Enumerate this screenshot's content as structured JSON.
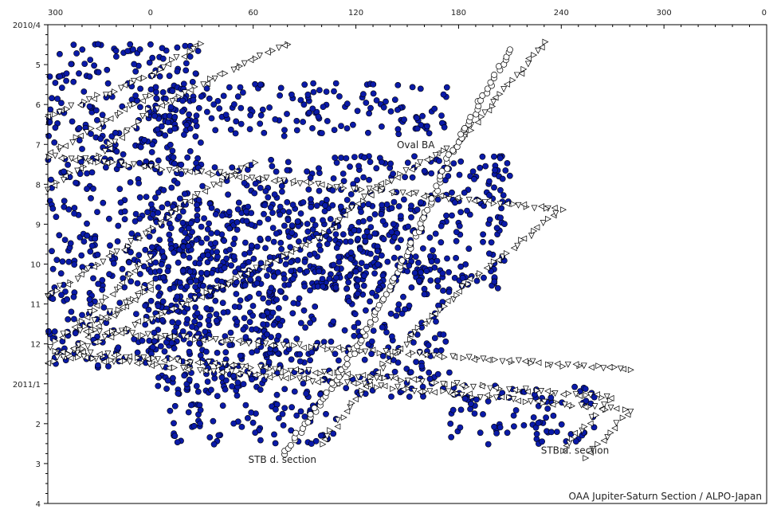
{
  "chart_data": {
    "type": "scatter",
    "title": "",
    "xlabel": "",
    "ylabel": "",
    "x_axis": {
      "range_from": 300,
      "range_to": 360,
      "wraps_through_zero": true,
      "ticks": [
        "300",
        "0",
        "60",
        "120",
        "180",
        "240",
        "300",
        "0"
      ]
    },
    "y_axis": {
      "start": "2010-04",
      "end": "2011-04",
      "inverted": true,
      "ticks": [
        "2010/4",
        "5",
        "6",
        "7",
        "8",
        "9",
        "10",
        "11",
        "12",
        "2011/1",
        "2",
        "3",
        "4"
      ]
    },
    "legend": "none",
    "grid": false,
    "colors": {
      "spot_fill": "#0a1aa8",
      "spot_stroke": "#000000",
      "oval_fill": "#ffffff",
      "triangle_fill": "#ffffff",
      "axis": "#000000"
    },
    "series": [
      {
        "marker": "filled-circle",
        "approx_point_count": 2000,
        "bands": [
          {
            "longitude_from": 300,
            "longitude_to": 30,
            "date_from": "2010-04-15",
            "date_to": "2010-10-20"
          },
          {
            "longitude_from": 300,
            "longitude_to": 80,
            "date_from": "2010-10-20",
            "date_to": "2010-12-20"
          },
          {
            "longitude_from": 10,
            "longitude_to": 110,
            "date_from": "2011-01-15",
            "date_to": "2011-02-15"
          },
          {
            "longitude_from": 20,
            "longitude_to": 160,
            "date_from": "2010-08-15",
            "date_to": "2010-10-15"
          },
          {
            "longitude_from": 175,
            "longitude_to": 360,
            "date_from": "2010-05-15",
            "date_to": "2010-06-25"
          },
          {
            "longitude_from": 210,
            "longitude_to": 360,
            "date_from": "2010-07-10",
            "date_to": "2010-10-20"
          },
          {
            "longitude_from": 175,
            "longitude_to": 360,
            "date_from": "2010-10-01",
            "date_to": "2011-01-10"
          },
          {
            "longitude_from": 175,
            "longitude_to": 260,
            "date_from": "2011-01-01",
            "date_to": "2011-02-15"
          }
        ]
      },
      {
        "marker": "open-circle",
        "feature": "Oval BA",
        "track": [
          {
            "longitude": 78,
            "date": "2011-02-22"
          },
          {
            "longitude": 110,
            "date": "2010-12-25"
          },
          {
            "longitude": 135,
            "date": "2010-11-01"
          },
          {
            "longitude": 160,
            "date": "2010-08-25"
          },
          {
            "longitude": 175,
            "date": "2010-07-10"
          },
          {
            "longitude": 190,
            "date": "2010-06-05"
          },
          {
            "longitude": 210,
            "date": "2010-04-20"
          }
        ]
      },
      {
        "marker": "open-triangle",
        "feature": "STB dark section",
        "tracks": [
          [
            {
              "longitude": 80,
              "date": "2010-04-15"
            },
            {
              "longitude": 0,
              "date": "2010-06-05"
            },
            {
              "longitude": 330,
              "date": "2010-07-10"
            },
            {
              "longitude": 300,
              "date": "2010-08-05"
            }
          ],
          [
            {
              "longitude": 30,
              "date": "2010-04-15"
            },
            {
              "longitude": 0,
              "date": "2010-05-10"
            },
            {
              "longitude": 300,
              "date": "2010-06-10"
            }
          ],
          [
            {
              "longitude": 230,
              "date": "2010-04-15"
            },
            {
              "longitude": 180,
              "date": "2010-06-30"
            },
            {
              "longitude": 130,
              "date": "2010-08-05"
            },
            {
              "longitude": 100,
              "date": "2010-09-10"
            },
            {
              "longitude": 30,
              "date": "2010-10-25"
            },
            {
              "longitude": 300,
              "date": "2010-12-15"
            }
          ],
          [
            {
              "longitude": 60,
              "date": "2010-07-15"
            },
            {
              "longitude": 20,
              "date": "2010-08-15"
            },
            {
              "longitude": 0,
              "date": "2010-09-05"
            },
            {
              "longitude": 300,
              "date": "2010-10-25"
            }
          ],
          [
            {
              "longitude": 100,
              "date": "2011-02-15"
            },
            {
              "longitude": 130,
              "date": "2010-12-25"
            },
            {
              "longitude": 160,
              "date": "2010-11-15"
            },
            {
              "longitude": 190,
              "date": "2010-10-10"
            },
            {
              "longitude": 240,
              "date": "2010-08-20"
            },
            {
              "longitude": 300,
              "date": "2010-07-10"
            },
            {
              "longitude": 0,
              "date": "2010-05-25"
            }
          ],
          [
            {
              "longitude": 240,
              "date": "2011-02-20"
            },
            {
              "longitude": 270,
              "date": "2011-01-10"
            },
            {
              "longitude": 300,
              "date": "2010-12-05"
            },
            {
              "longitude": 330,
              "date": "2010-11-01"
            },
            {
              "longitude": 0,
              "date": "2010-09-25"
            }
          ],
          [
            {
              "longitude": 255,
              "date": "2011-02-25"
            },
            {
              "longitude": 280,
              "date": "2011-01-20"
            },
            {
              "longitude": 310,
              "date": "2010-12-10"
            },
            {
              "longitude": 0,
              "date": "2010-10-15"
            }
          ],
          [
            {
              "longitude": 280,
              "date": "2010-12-20"
            },
            {
              "longitude": 320,
              "date": "2010-11-20"
            },
            {
              "longitude": 0,
              "date": "2010-10-20"
            }
          ]
        ]
      }
    ],
    "annotations": [
      {
        "text": "Oval BA",
        "longitude": 155,
        "date": "2010-07-04"
      },
      {
        "text": "STB d. section",
        "longitude": 77,
        "date": "2011-03-01"
      },
      {
        "text": "STB d. section",
        "longitude": 248,
        "date": "2011-02-22"
      }
    ],
    "credit": "OAA Jupiter-Saturn Section / ALPO-Japan"
  }
}
